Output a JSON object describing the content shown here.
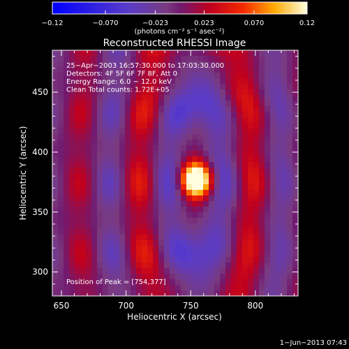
{
  "chart_data": {
    "type": "heatmap",
    "title": "Reconstructed RHESSI Image",
    "xlabel": "Heliocentric X (arcsec)",
    "ylabel": "Heliocentric Y (arcsec)",
    "xlim": [
      643,
      833
    ],
    "ylim": [
      280,
      485
    ],
    "x_ticks": [
      650,
      700,
      750,
      800
    ],
    "y_ticks": [
      300,
      350,
      400,
      450
    ],
    "colorbar": {
      "range": [
        -0.12,
        0.12
      ],
      "ticks": [
        -0.12,
        -0.07,
        -0.023,
        0.023,
        0.07,
        0.12
      ],
      "tick_labels": [
        "−0.12",
        "−0.070",
        "−0.023",
        "0.023",
        "0.070",
        "0.12"
      ],
      "unit_label": "(photons cm⁻² s⁻¹ asec⁻²)"
    },
    "annotations": [
      "25−Apr−2003 16:57:30.000 to 17:03:30.000",
      "Detectors: 4F 5F 6F 7F 8F, Att 0",
      "Energy Range: 6.0 − 12.0 keV",
      "Clean     Total counts: 1.72E+05"
    ],
    "peak_label": "Position of Peak = [754,377]",
    "peak": {
      "x": 754,
      "y": 377
    },
    "timestamp": "1−Jun−2013 07:43"
  }
}
